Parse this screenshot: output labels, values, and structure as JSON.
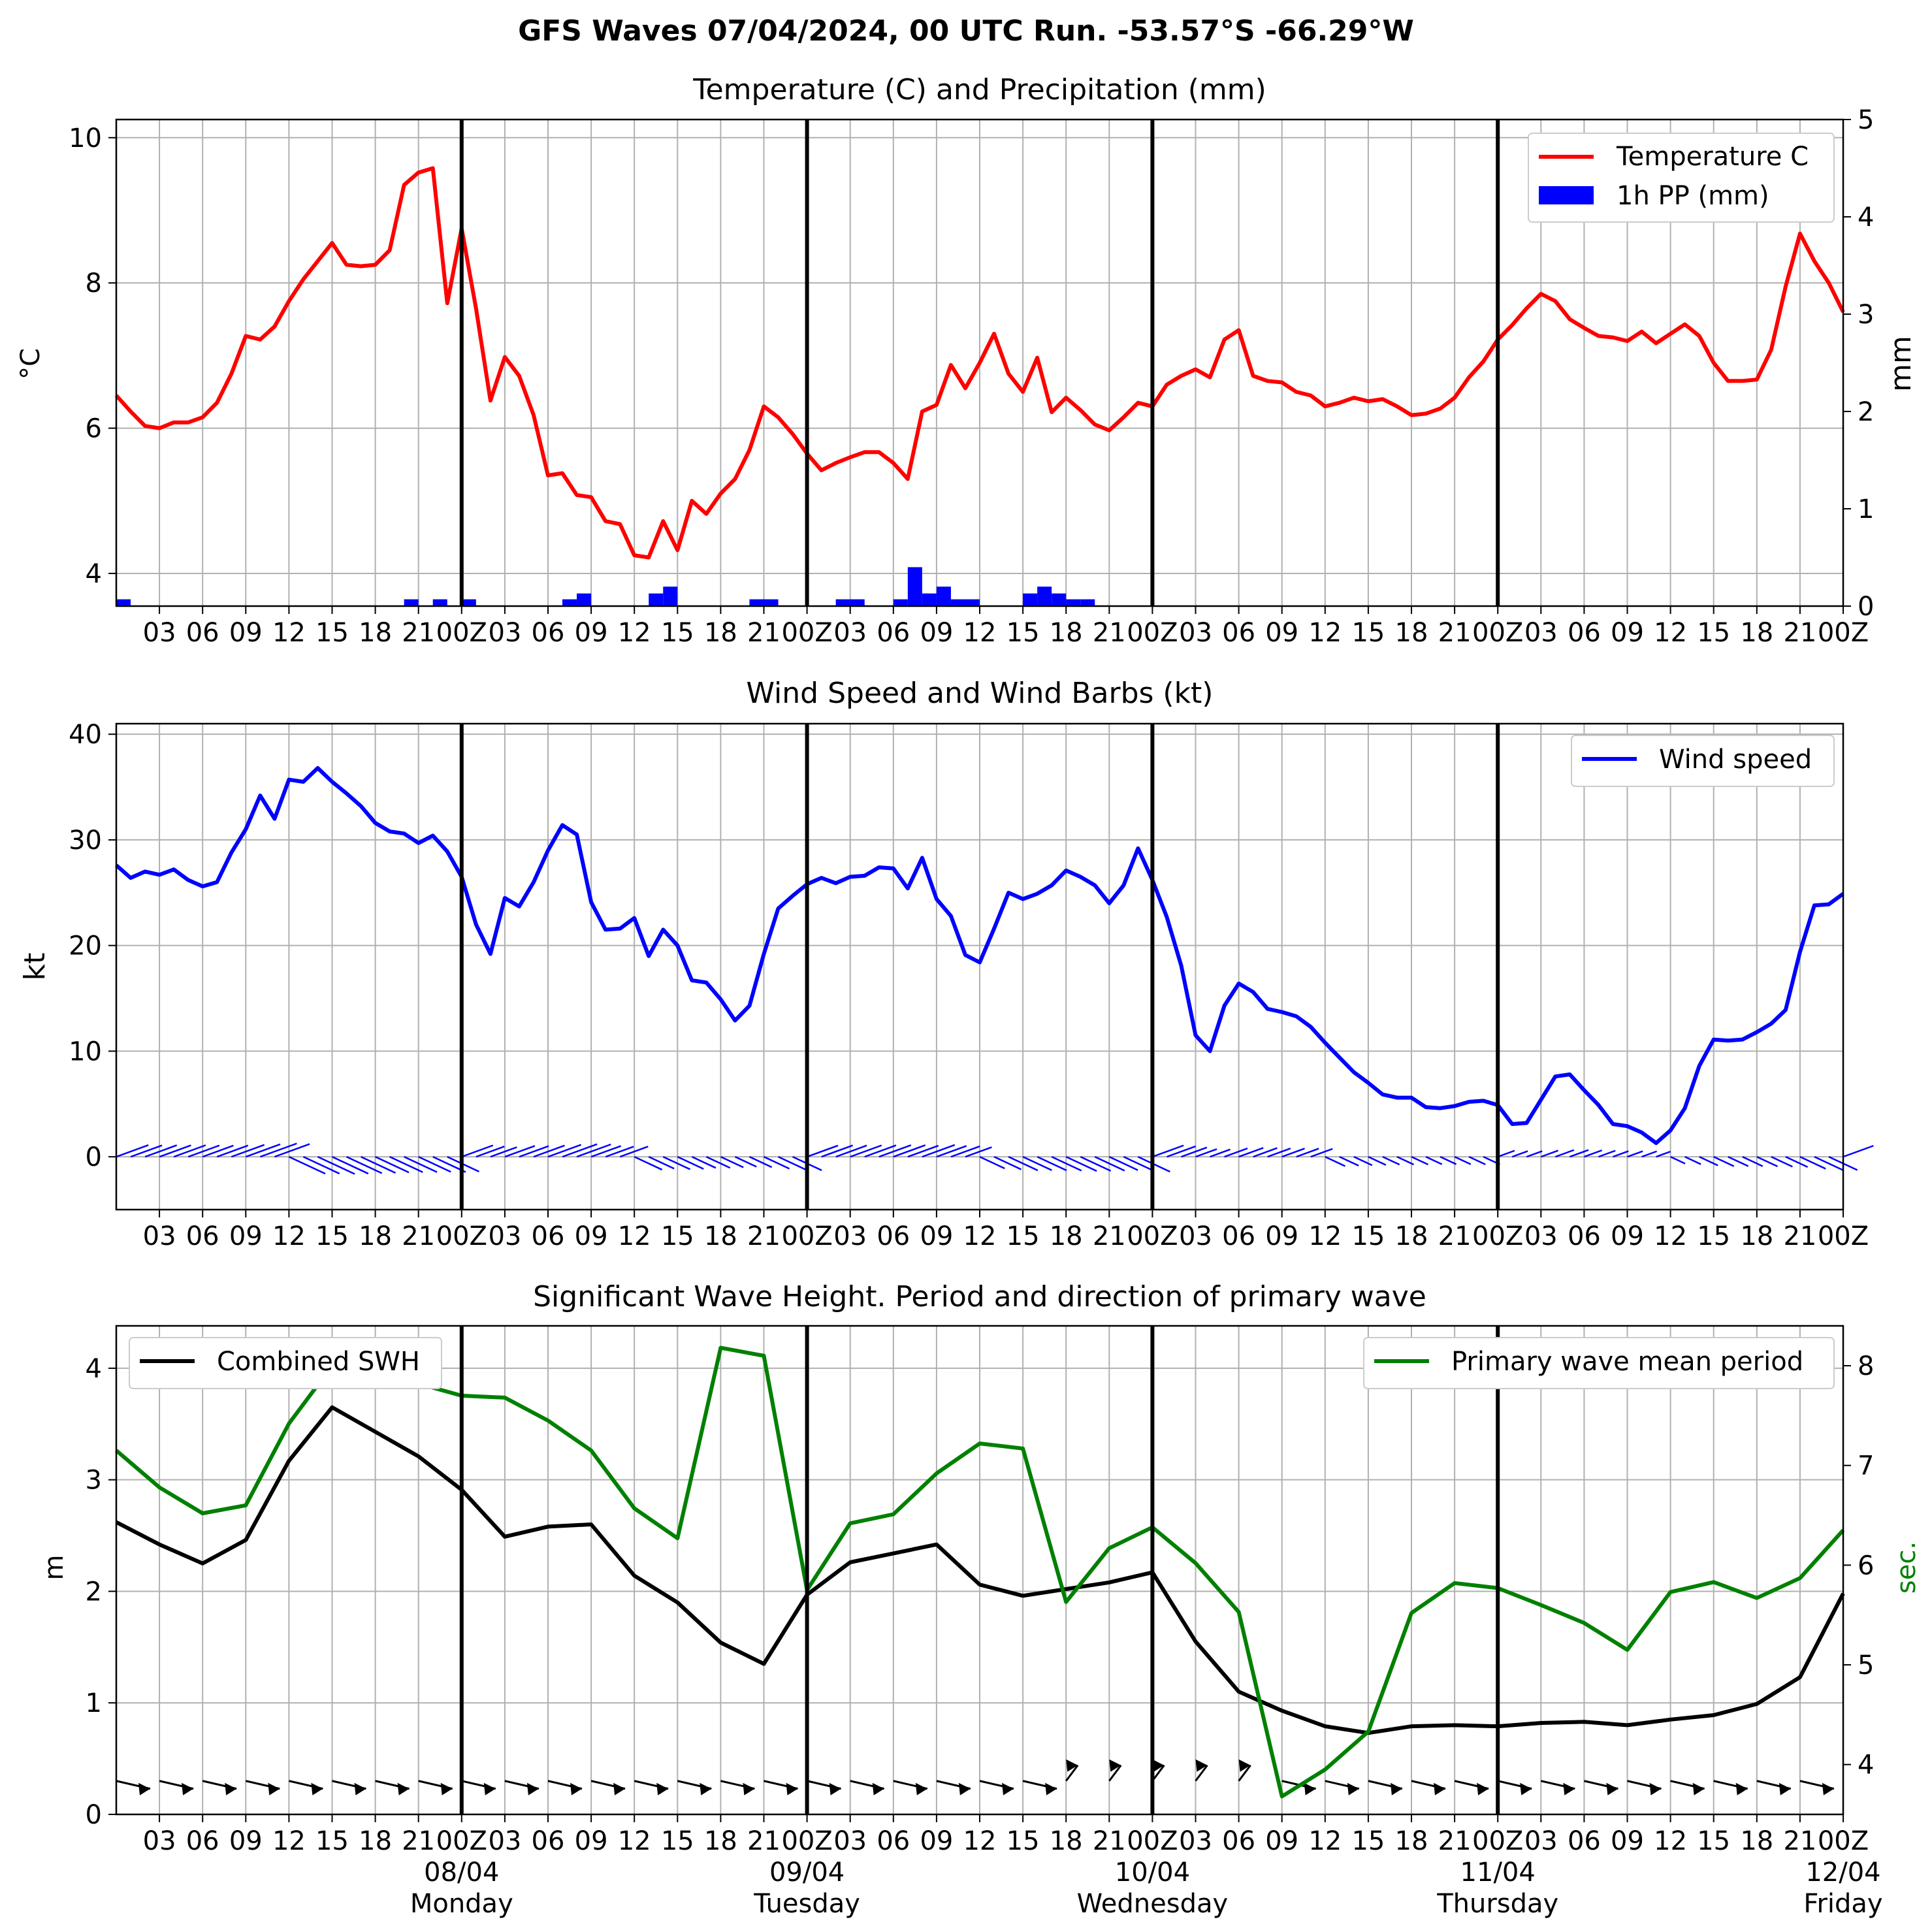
{
  "title": "GFS Waves 07/04/2024, 00 UTC Run. -53.57°S -66.29°W",
  "x_tick_labels": [
    "03",
    "06",
    "09",
    "12",
    "15",
    "18",
    "21",
    "00Z",
    "03",
    "06",
    "09",
    "12",
    "15",
    "18",
    "21",
    "00Z",
    "03",
    "06",
    "09",
    "12",
    "15",
    "18",
    "21",
    "00Z",
    "03",
    "06",
    "09",
    "12",
    "15",
    "18",
    "21",
    "00Z",
    "03",
    "06",
    "09",
    "12",
    "15",
    "18",
    "21",
    "00Z"
  ],
  "date_labels": [
    {
      "date": "08/04",
      "day": "Monday"
    },
    {
      "date": "09/04",
      "day": "Tuesday"
    },
    {
      "date": "10/04",
      "day": "Wednesday"
    },
    {
      "date": "11/04",
      "day": "Thursday"
    },
    {
      "date": "12/04",
      "day": "Friday"
    }
  ],
  "colors": {
    "temperature": "#ff0000",
    "precip": "#0000ff",
    "wind": "#0000ff",
    "swh": "#000000",
    "period": "#008000",
    "grid": "#b0b0b0"
  },
  "chart_data": [
    {
      "type": "line",
      "title": "Temperature (C) and Precipitation (mm)",
      "ylabel": "$^\\circ$C",
      "y2label": "mm",
      "ylim": [
        3.55,
        10.25
      ],
      "y_ticks": [
        4,
        6,
        8,
        10
      ],
      "y2lim": [
        0,
        5
      ],
      "y2_ticks": [
        0,
        1,
        2,
        3,
        4,
        5
      ],
      "xlim_hours": [
        0,
        120
      ],
      "grid": true,
      "legend_position": "top-right",
      "series": [
        {
          "name": "Temperature C",
          "kind": "line",
          "x_hours": [
            0,
            1,
            2,
            3,
            4,
            5,
            6,
            7,
            8,
            9,
            10,
            11,
            12,
            13,
            14,
            15,
            16,
            17,
            18,
            19,
            20,
            21,
            22,
            23,
            24,
            25,
            26,
            27,
            28,
            29,
            30,
            31,
            32,
            33,
            34,
            35,
            36,
            37,
            38,
            39,
            40,
            41,
            42,
            43,
            44,
            45,
            46,
            47,
            48,
            49,
            50,
            51,
            52,
            53,
            54,
            55,
            56,
            57,
            58,
            59,
            60,
            61,
            62,
            63,
            64,
            65,
            66,
            67,
            68,
            69,
            70,
            71,
            72,
            73,
            74,
            75,
            76,
            77,
            78,
            79,
            80,
            81,
            82,
            83,
            84,
            85,
            86,
            87,
            88,
            89,
            90,
            91,
            92,
            93,
            94,
            95,
            96,
            97,
            98,
            99,
            100,
            101,
            102,
            103,
            104,
            105,
            106,
            107,
            108,
            109,
            110,
            111,
            112,
            113,
            114,
            115,
            116,
            117,
            118,
            119,
            120
          ],
          "values": [
            6.45,
            6.23,
            6.03,
            6.0,
            6.08,
            6.08,
            6.15,
            6.35,
            6.75,
            7.27,
            7.22,
            7.4,
            7.75,
            8.05,
            8.3,
            8.55,
            8.25,
            8.23,
            8.25,
            8.45,
            9.35,
            9.52,
            9.58,
            7.72,
            8.75,
            7.65,
            6.38,
            6.98,
            6.72,
            6.18,
            5.35,
            5.38,
            5.08,
            5.05,
            4.72,
            4.68,
            4.25,
            4.22,
            4.72,
            4.32,
            5.0,
            4.82,
            5.1,
            5.3,
            5.7,
            6.3,
            6.15,
            5.92,
            5.65,
            5.42,
            5.52,
            5.6,
            5.67,
            5.67,
            5.52,
            5.3,
            6.23,
            6.32,
            6.87,
            6.55,
            6.9,
            7.3,
            6.75,
            6.5,
            6.97,
            6.22,
            6.42,
            6.25,
            6.05,
            5.97,
            6.15,
            6.35,
            6.3,
            6.6,
            6.72,
            6.81,
            6.7,
            7.22,
            7.35,
            6.72,
            6.65,
            6.63,
            6.5,
            6.45,
            6.3,
            6.35,
            6.42,
            6.37,
            6.4,
            6.3,
            6.18,
            6.2,
            6.27,
            6.42,
            6.7,
            6.92,
            7.22,
            7.42,
            7.65,
            7.85,
            7.75,
            7.5,
            7.38,
            7.27,
            7.25,
            7.2,
            7.33,
            7.17,
            7.3,
            7.43,
            7.27,
            6.9,
            6.65,
            6.65,
            6.67,
            7.08,
            7.95,
            8.68,
            8.3,
            8.0,
            7.6
          ]
        },
        {
          "name": "1h PP (mm)",
          "kind": "bar",
          "x_hours": [
            0,
            20,
            22,
            24,
            31,
            32,
            37,
            38,
            44,
            45,
            50,
            51,
            54,
            55,
            56,
            57,
            58,
            59,
            63,
            64,
            65,
            66,
            67
          ],
          "values": [
            0.07,
            0.07,
            0.07,
            0.07,
            0.07,
            0.13,
            0.13,
            0.2,
            0.07,
            0.07,
            0.07,
            0.07,
            0.07,
            0.4,
            0.13,
            0.2,
            0.07,
            0.07,
            0.13,
            0.2,
            0.13,
            0.07,
            0.07
          ]
        }
      ]
    },
    {
      "type": "line",
      "title": "Wind Speed and Wind Barbs (kt)",
      "ylabel": "kt",
      "ylim": [
        -5,
        41
      ],
      "y_ticks": [
        0,
        10,
        20,
        30,
        40
      ],
      "xlim_hours": [
        0,
        120
      ],
      "grid": true,
      "legend_position": "top-right",
      "series": [
        {
          "name": "Wind speed",
          "kind": "line",
          "x_hours": [
            0,
            1,
            2,
            3,
            4,
            5,
            6,
            7,
            8,
            9,
            10,
            11,
            12,
            13,
            14,
            15,
            16,
            17,
            18,
            19,
            20,
            21,
            22,
            23,
            24,
            25,
            26,
            27,
            28,
            29,
            30,
            31,
            32,
            33,
            34,
            35,
            36,
            37,
            38,
            39,
            40,
            41,
            42,
            43,
            44,
            45,
            46,
            47,
            48,
            49,
            50,
            51,
            52,
            53,
            54,
            55,
            56,
            57,
            58,
            59,
            60,
            61,
            62,
            63,
            64,
            65,
            66,
            67,
            68,
            69,
            70,
            71,
            72,
            73,
            74,
            75,
            76,
            77,
            78,
            79,
            80,
            81,
            82,
            83,
            84,
            85,
            86,
            87,
            88,
            89,
            90,
            91,
            92,
            93,
            94,
            95,
            96,
            97,
            98,
            99,
            100,
            101,
            102,
            103,
            104,
            105,
            106,
            107,
            108,
            109,
            110,
            111,
            112,
            113,
            114,
            115,
            116,
            117,
            118,
            119,
            120
          ],
          "values": [
            27.6,
            26.4,
            27.0,
            26.7,
            27.2,
            26.2,
            25.6,
            26.0,
            28.8,
            31.0,
            34.2,
            32.0,
            35.7,
            35.5,
            36.8,
            35.5,
            34.4,
            33.2,
            31.6,
            30.8,
            30.6,
            29.7,
            30.4,
            28.9,
            26.5,
            22.0,
            19.2,
            24.5,
            23.7,
            26.0,
            29.0,
            31.4,
            30.5,
            24.1,
            21.5,
            21.6,
            22.6,
            19.0,
            21.5,
            20.0,
            16.7,
            16.5,
            14.9,
            12.9,
            14.3,
            19.2,
            23.5,
            24.7,
            25.8,
            26.4,
            25.9,
            26.5,
            26.6,
            27.4,
            27.3,
            25.4,
            28.3,
            24.4,
            22.8,
            19.1,
            18.4,
            21.6,
            25.0,
            24.4,
            24.9,
            25.7,
            27.1,
            26.5,
            25.7,
            24.0,
            25.7,
            29.2,
            26.2,
            22.7,
            18.1,
            11.5,
            10.0,
            14.3,
            16.4,
            15.6,
            14.0,
            13.7,
            13.3,
            12.3,
            10.8,
            9.4,
            8.0,
            7.0,
            5.9,
            5.6,
            5.6,
            4.7,
            4.6,
            4.8,
            5.2,
            5.3,
            4.9,
            3.1,
            3.2,
            5.4,
            7.6,
            7.8,
            6.3,
            4.9,
            3.1,
            2.9,
            2.3,
            1.3,
            2.5,
            4.6,
            8.6,
            11.1,
            11.0,
            11.1,
            11.8,
            12.6,
            13.9,
            19.4,
            23.8,
            23.9,
            24.9
          ]
        }
      ],
      "barbs_label": "Wind Barbs"
    },
    {
      "type": "line",
      "title": "Significant Wave Height. Period and direction of primary wave",
      "ylabel": "m",
      "y2label": "sec.",
      "ylim": [
        0,
        4.38
      ],
      "y_ticks": [
        0,
        1,
        2,
        3,
        4
      ],
      "y2lim": [
        3.5,
        8.4
      ],
      "y2_ticks": [
        4,
        5,
        6,
        7,
        8
      ],
      "xlim_hours": [
        0,
        120
      ],
      "grid": true,
      "series": [
        {
          "name": "Combined SWH",
          "kind": "line",
          "axis": "left",
          "legend_position": "top-left",
          "x_hours": [
            0,
            3,
            6,
            9,
            12,
            15,
            18,
            21,
            24,
            27,
            30,
            33,
            36,
            39,
            42,
            45,
            48,
            51,
            54,
            57,
            60,
            63,
            66,
            69,
            72,
            75,
            78,
            81,
            84,
            87,
            90,
            93,
            96,
            99,
            102,
            105,
            108,
            111,
            114,
            117,
            120
          ],
          "values": [
            2.62,
            2.42,
            2.25,
            2.46,
            3.17,
            3.65,
            3.43,
            3.21,
            2.91,
            2.49,
            2.58,
            2.6,
            2.14,
            1.9,
            1.54,
            1.35,
            1.97,
            2.26,
            2.34,
            2.42,
            2.06,
            1.96,
            2.02,
            2.08,
            2.17,
            1.55,
            1.1,
            0.93,
            0.79,
            0.73,
            0.79,
            0.8,
            0.79,
            0.82,
            0.83,
            0.8,
            0.85,
            0.89,
            0.99,
            1.23,
            1.98
          ]
        },
        {
          "name": "Primary wave mean period",
          "kind": "line",
          "axis": "right",
          "legend_position": "top-right",
          "x_hours": [
            0,
            3,
            6,
            9,
            12,
            15,
            18,
            21,
            24,
            27,
            30,
            33,
            36,
            39,
            42,
            45,
            48,
            51,
            54,
            57,
            60,
            63,
            66,
            69,
            72,
            75,
            78,
            81,
            84,
            87,
            90,
            93,
            96,
            99,
            102,
            105,
            108,
            111,
            114,
            117,
            120
          ],
          "values": [
            7.15,
            6.78,
            6.52,
            6.6,
            7.42,
            8.0,
            8.0,
            7.82,
            7.7,
            7.68,
            7.45,
            7.15,
            6.57,
            6.27,
            8.18,
            8.1,
            5.75,
            6.42,
            6.51,
            6.92,
            7.22,
            7.17,
            5.63,
            6.17,
            6.38,
            6.02,
            5.53,
            3.68,
            3.95,
            4.33,
            5.52,
            5.82,
            5.77,
            5.6,
            5.42,
            5.15,
            5.73,
            5.83,
            5.67,
            5.87,
            6.35
          ]
        },
        {
          "name": "Primary wave direction",
          "kind": "arrows",
          "x_hours": [
            0,
            3,
            6,
            9,
            12,
            15,
            18,
            21,
            24,
            27,
            30,
            33,
            36,
            39,
            42,
            45,
            48,
            51,
            54,
            57,
            60,
            63,
            66,
            69,
            72,
            75,
            78,
            81,
            84,
            87,
            90,
            93,
            96,
            99,
            102,
            105,
            108,
            111,
            114,
            117,
            120
          ]
        }
      ]
    }
  ]
}
